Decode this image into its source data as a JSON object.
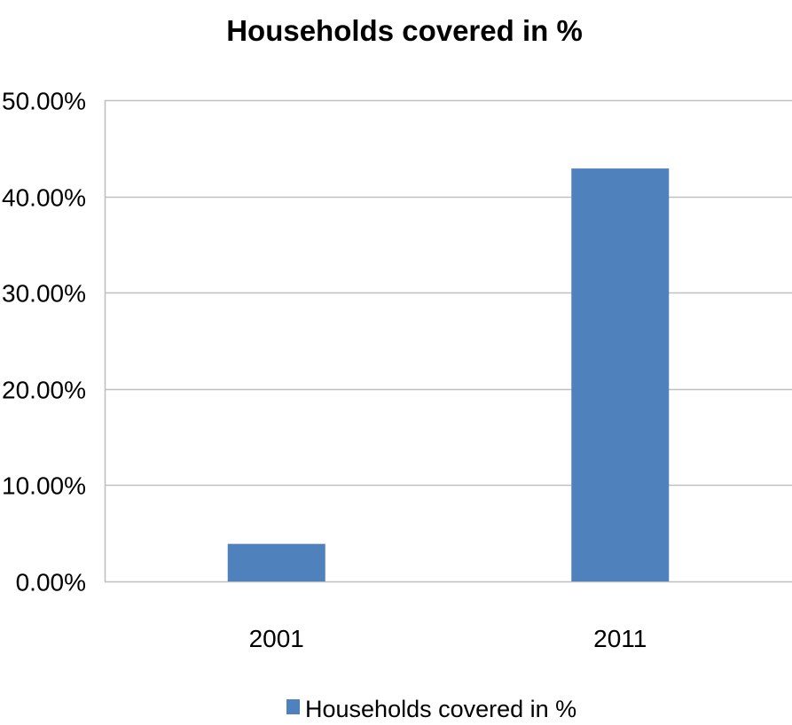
{
  "chart_data": {
    "type": "bar",
    "title": "Households covered in %",
    "xlabel": "",
    "ylabel": "",
    "categories": [
      "2001",
      "2011"
    ],
    "series": [
      {
        "name": "Households covered in %",
        "values": [
          0.039,
          0.429
        ],
        "color": "#4f81bd"
      }
    ],
    "ylim": [
      0,
      0.5
    ],
    "yticks": [
      0,
      0.1,
      0.2,
      0.3,
      0.4,
      0.5
    ],
    "ytick_labels": [
      "0.00%",
      "10.00%",
      "20.00%",
      "30.00%",
      "40.00%",
      "50.00%"
    ],
    "grid": true,
    "gridline_color": "#c0c0c0",
    "legend_position": "bottom"
  }
}
